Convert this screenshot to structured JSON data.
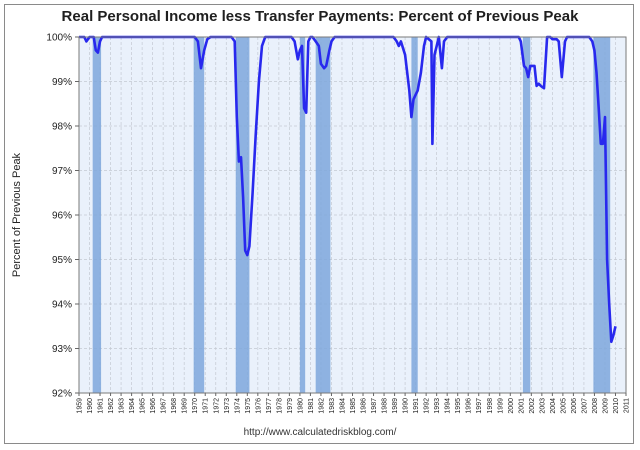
{
  "chart_data": {
    "type": "line",
    "title": "Real Personal Income less Transfer Payments: Percent of Previous Peak",
    "xlabel": "",
    "ylabel": "Percent of Previous Peak",
    "ylim": [
      92,
      100
    ],
    "xlim": [
      1959,
      2011
    ],
    "y_ticks": [
      "92%",
      "93%",
      "94%",
      "95%",
      "96%",
      "97%",
      "98%",
      "99%",
      "100%"
    ],
    "y_tick_values": [
      92,
      93,
      94,
      95,
      96,
      97,
      98,
      99,
      100
    ],
    "x_ticks": [
      "1959",
      "1960",
      "1961",
      "1962",
      "1963",
      "1964",
      "1965",
      "1966",
      "1967",
      "1968",
      "1969",
      "1970",
      "1971",
      "1972",
      "1973",
      "1974",
      "1975",
      "1976",
      "1977",
      "1978",
      "1979",
      "1980",
      "1981",
      "1982",
      "1983",
      "1984",
      "1985",
      "1986",
      "1987",
      "1988",
      "1989",
      "1990",
      "1991",
      "1992",
      "1993",
      "1994",
      "1995",
      "1996",
      "1997",
      "1998",
      "1999",
      "2000",
      "2001",
      "2002",
      "2003",
      "2004",
      "2005",
      "2006",
      "2007",
      "2008",
      "2009",
      "2010",
      "2011"
    ],
    "recessions": [
      {
        "start": 1960.3,
        "end": 1961.1
      },
      {
        "start": 1969.9,
        "end": 1970.9
      },
      {
        "start": 1973.9,
        "end": 1975.2
      },
      {
        "start": 1980.0,
        "end": 1980.5
      },
      {
        "start": 1981.5,
        "end": 1982.9
      },
      {
        "start": 1990.6,
        "end": 1991.2
      },
      {
        "start": 2001.2,
        "end": 2001.9
      },
      {
        "start": 2007.9,
        "end": 2009.5
      }
    ],
    "series": [
      {
        "name": "Real Personal Income less Transfer Payments",
        "color": "#2828ee",
        "x": [
          1959.0,
          1959.5,
          1959.7,
          1960.0,
          1960.4,
          1960.6,
          1960.8,
          1961.0,
          1961.2,
          1961.4,
          1969.0,
          1970.0,
          1970.3,
          1970.6,
          1970.9,
          1971.2,
          1971.5,
          1973.5,
          1973.8,
          1974.0,
          1974.2,
          1974.4,
          1974.6,
          1974.8,
          1975.0,
          1975.2,
          1975.5,
          1975.8,
          1976.1,
          1976.4,
          1976.7,
          1979.2,
          1979.5,
          1979.8,
          1980.0,
          1980.2,
          1980.4,
          1980.6,
          1980.8,
          1981.0,
          1981.2,
          1981.5,
          1981.8,
          1982.0,
          1982.3,
          1982.5,
          1982.8,
          1983.0,
          1983.3,
          1983.7,
          1988.9,
          1989.2,
          1989.4,
          1989.6,
          1990.0,
          1990.4,
          1990.6,
          1990.8,
          1991.0,
          1991.2,
          1991.5,
          1991.8,
          1992.0,
          1992.5,
          1992.6,
          1992.8,
          1993.0,
          1993.2,
          1993.5,
          1993.7,
          1994.0,
          2000.8,
          2001.0,
          2001.3,
          2001.5,
          2001.7,
          2001.9,
          2002.1,
          2002.3,
          2002.5,
          2002.7,
          2002.9,
          2003.2,
          2003.5,
          2003.8,
          2004.0,
          2004.4,
          2004.6,
          2004.9,
          2005.2,
          2005.4,
          2005.7,
          2006.0,
          2007.5,
          2007.8,
          2008.0,
          2008.2,
          2008.4,
          2008.6,
          2008.8,
          2009.0,
          2009.2,
          2009.4,
          2009.6,
          2009.8,
          2010.0
        ],
        "values": [
          100,
          100,
          99.9,
          100,
          100,
          99.7,
          99.65,
          99.9,
          100,
          100,
          100,
          100,
          99.9,
          99.3,
          99.7,
          99.95,
          100,
          100,
          99.9,
          98.2,
          97.2,
          97.3,
          96.4,
          95.2,
          95.1,
          95.3,
          96.5,
          97.8,
          99.0,
          99.8,
          100,
          100,
          99.9,
          99.5,
          99.7,
          99.8,
          98.4,
          98.3,
          99.9,
          100,
          100,
          99.9,
          99.8,
          99.4,
          99.3,
          99.35,
          99.7,
          99.9,
          100,
          100,
          100,
          99.9,
          99.8,
          99.9,
          99.6,
          98.8,
          98.2,
          98.6,
          98.7,
          98.8,
          99.2,
          99.8,
          100,
          99.9,
          97.6,
          99.6,
          99.8,
          100,
          99.3,
          99.9,
          100,
          100,
          99.9,
          99.35,
          99.3,
          99.1,
          99.35,
          99.35,
          99.35,
          98.9,
          98.95,
          98.9,
          98.85,
          100,
          100,
          99.95,
          99.95,
          99.9,
          99.1,
          99.9,
          100,
          100,
          100,
          100,
          99.9,
          99.7,
          99.2,
          98.4,
          97.6,
          97.6,
          98.2,
          95.0,
          94.0,
          93.15,
          93.3,
          93.5
        ]
      }
    ]
  },
  "footer": {
    "url": "http://www.calculatedriskblog.com/"
  }
}
